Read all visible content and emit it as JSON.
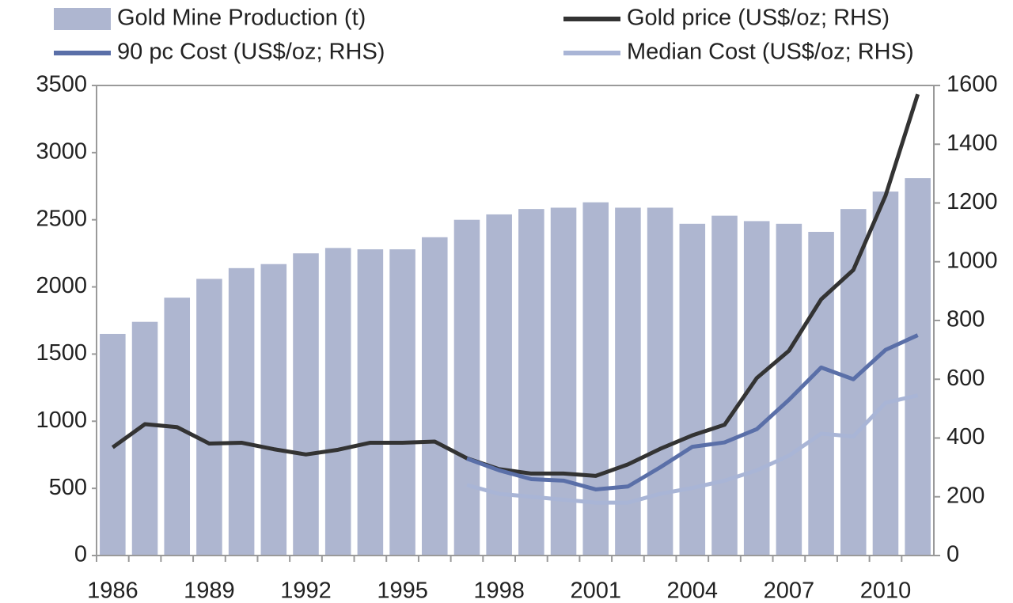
{
  "chart_data": {
    "type": "bar",
    "categories": [
      "1986",
      null,
      null,
      "1989",
      null,
      null,
      "1992",
      null,
      null,
      "1995",
      null,
      null,
      "1998",
      null,
      null,
      "2001",
      null,
      null,
      "2004",
      null,
      null,
      "2007",
      null,
      null,
      "2010",
      null
    ],
    "series": [
      {
        "name": "Gold Mine Production (t)",
        "type": "bar",
        "color": "#aeb6d0",
        "axis": "y",
        "values": [
          1650,
          1740,
          1920,
          2060,
          2140,
          2170,
          2250,
          2290,
          2280,
          2280,
          2370,
          2500,
          2540,
          2580,
          2590,
          2630,
          2590,
          2590,
          2470,
          2530,
          2490,
          2470,
          2410,
          2580,
          2710,
          2810
        ]
      },
      {
        "name": "Gold price (US$/oz; RHS)",
        "type": "line",
        "color": "#333333",
        "axis": "y2",
        "values": [
          368,
          447,
          437,
          381,
          384,
          362,
          344,
          360,
          384,
          384,
          388,
          331,
          294,
          279,
          279,
          271,
          310,
          363,
          409,
          445,
          604,
          697,
          872,
          972,
          1225,
          1570
        ]
      },
      {
        "name": "90 pc Cost (US$/oz; RHS)",
        "type": "line",
        "color": "#5a6fa8",
        "axis": "y2",
        "values": [
          null,
          null,
          null,
          null,
          null,
          null,
          null,
          null,
          null,
          null,
          null,
          330,
          290,
          260,
          255,
          225,
          235,
          300,
          370,
          385,
          430,
          530,
          640,
          600,
          700,
          750
        ]
      },
      {
        "name": "Median Cost (US$/oz; RHS)",
        "type": "line",
        "color": "#a9b5d6",
        "axis": "y2",
        "values": [
          null,
          null,
          null,
          null,
          null,
          null,
          null,
          null,
          null,
          null,
          null,
          240,
          210,
          200,
          190,
          180,
          180,
          210,
          230,
          255,
          290,
          340,
          415,
          405,
          520,
          545
        ]
      }
    ],
    "ylim": [
      0,
      3500
    ],
    "yticks": [
      0,
      500,
      1000,
      1500,
      2000,
      2500,
      3000,
      3500
    ],
    "y2lim": [
      0,
      1600
    ],
    "y2ticks": [
      0,
      200,
      400,
      600,
      800,
      1000,
      1200,
      1400,
      1600
    ],
    "legend": "top"
  }
}
